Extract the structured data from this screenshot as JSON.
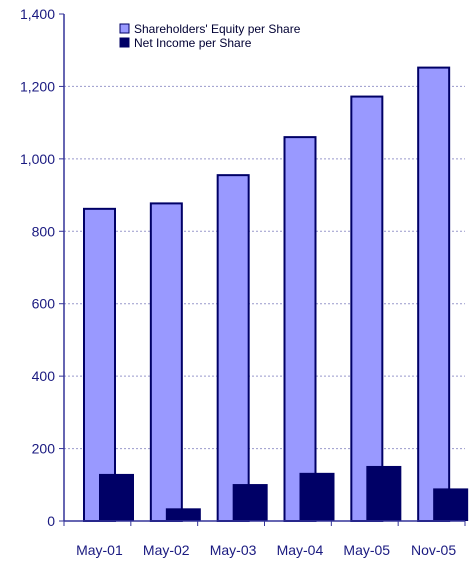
{
  "colors": {
    "equity_bar": "#9999FF",
    "net_income_bar": "#000066",
    "axis": "#333399",
    "text": "#1a1a80",
    "grid": "#9999cc"
  },
  "chart_data": {
    "type": "bar",
    "title": "",
    "xlabel": "",
    "ylabel": "",
    "ylim": [
      0,
      1400
    ],
    "yticks": [
      0,
      200,
      400,
      600,
      800,
      1000,
      1200,
      1400
    ],
    "ytick_labels": [
      "0",
      "200",
      "400",
      "600",
      "800",
      "1,000",
      "1,200",
      "1,400"
    ],
    "grid": true,
    "legend_position": "top-left",
    "categories": [
      "May-01",
      "May-02",
      "May-03",
      "May-04",
      "May-05",
      "Nov-05"
    ],
    "series": [
      {
        "name": "Shareholders' Equity per Share",
        "values": [
          862,
          877,
          955,
          1060,
          1172,
          1252
        ]
      },
      {
        "name": "Net Income per Share",
        "values": [
          130,
          35,
          102,
          133,
          152,
          90
        ]
      }
    ]
  }
}
